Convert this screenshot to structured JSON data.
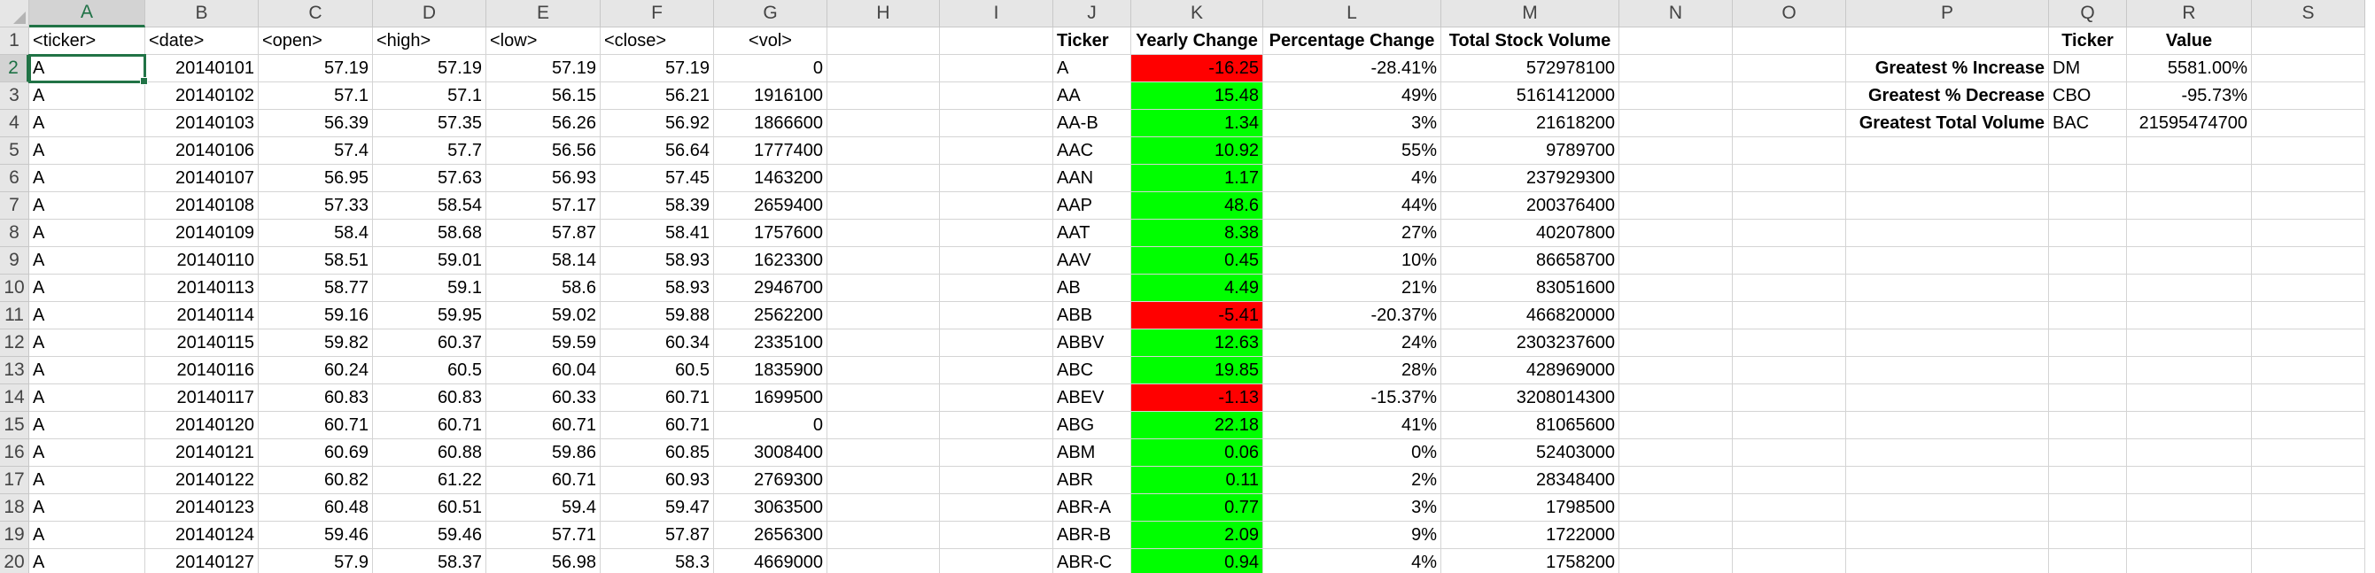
{
  "sheet": {
    "columns": [
      "A",
      "B",
      "C",
      "D",
      "E",
      "F",
      "G",
      "H",
      "I",
      "J",
      "K",
      "L",
      "M",
      "N",
      "O",
      "P",
      "Q",
      "R",
      "S"
    ],
    "selected_column": "A",
    "selected_row": "2",
    "rows": [
      "1",
      "2",
      "3",
      "4",
      "5",
      "6",
      "7",
      "8",
      "9",
      "10",
      "11",
      "12",
      "13",
      "14",
      "15",
      "16",
      "17",
      "18",
      "19",
      "20"
    ],
    "raw_headers": [
      "<ticker>",
      "<date>",
      "<open>",
      "<high>",
      "<low>",
      "<close>",
      "<vol>"
    ],
    "raw_data": [
      [
        "A",
        "20140101",
        "57.19",
        "57.19",
        "57.19",
        "57.19",
        "0"
      ],
      [
        "A",
        "20140102",
        "57.1",
        "57.1",
        "56.15",
        "56.21",
        "1916100"
      ],
      [
        "A",
        "20140103",
        "56.39",
        "57.35",
        "56.26",
        "56.92",
        "1866600"
      ],
      [
        "A",
        "20140106",
        "57.4",
        "57.7",
        "56.56",
        "56.64",
        "1777400"
      ],
      [
        "A",
        "20140107",
        "56.95",
        "57.63",
        "56.93",
        "57.45",
        "1463200"
      ],
      [
        "A",
        "20140108",
        "57.33",
        "58.54",
        "57.17",
        "58.39",
        "2659400"
      ],
      [
        "A",
        "20140109",
        "58.4",
        "58.68",
        "57.87",
        "58.41",
        "1757600"
      ],
      [
        "A",
        "20140110",
        "58.51",
        "59.01",
        "58.14",
        "58.93",
        "1623300"
      ],
      [
        "A",
        "20140113",
        "58.77",
        "59.1",
        "58.6",
        "58.93",
        "2946700"
      ],
      [
        "A",
        "20140114",
        "59.16",
        "59.95",
        "59.02",
        "59.88",
        "2562200"
      ],
      [
        "A",
        "20140115",
        "59.82",
        "60.37",
        "59.59",
        "60.34",
        "2335100"
      ],
      [
        "A",
        "20140116",
        "60.24",
        "60.5",
        "60.04",
        "60.5",
        "1835900"
      ],
      [
        "A",
        "20140117",
        "60.83",
        "60.83",
        "60.33",
        "60.71",
        "1699500"
      ],
      [
        "A",
        "20140120",
        "60.71",
        "60.71",
        "60.71",
        "60.71",
        "0"
      ],
      [
        "A",
        "20140121",
        "60.69",
        "60.88",
        "59.86",
        "60.85",
        "3008400"
      ],
      [
        "A",
        "20140122",
        "60.82",
        "61.22",
        "60.71",
        "60.93",
        "2769300"
      ],
      [
        "A",
        "20140123",
        "60.48",
        "60.51",
        "59.4",
        "59.47",
        "3063500"
      ],
      [
        "A",
        "20140124",
        "59.46",
        "59.46",
        "57.71",
        "57.87",
        "2656300"
      ],
      [
        "A",
        "20140127",
        "57.9",
        "58.37",
        "56.98",
        "58.3",
        "4669000"
      ]
    ],
    "summary_headers": [
      "Ticker",
      "Yearly Change",
      "Percentage Change",
      "Total Stock Volume"
    ],
    "summary": [
      {
        "ticker": "A",
        "change": "-16.25",
        "pct": "-28.41%",
        "volume": "572978100",
        "color": "red"
      },
      {
        "ticker": "AA",
        "change": "15.48",
        "pct": "49%",
        "volume": "5161412000",
        "color": "green"
      },
      {
        "ticker": "AA-B",
        "change": "1.34",
        "pct": "3%",
        "volume": "21618200",
        "color": "green"
      },
      {
        "ticker": "AAC",
        "change": "10.92",
        "pct": "55%",
        "volume": "9789700",
        "color": "green"
      },
      {
        "ticker": "AAN",
        "change": "1.17",
        "pct": "4%",
        "volume": "237929300",
        "color": "green"
      },
      {
        "ticker": "AAP",
        "change": "48.6",
        "pct": "44%",
        "volume": "200376400",
        "color": "green"
      },
      {
        "ticker": "AAT",
        "change": "8.38",
        "pct": "27%",
        "volume": "40207800",
        "color": "green"
      },
      {
        "ticker": "AAV",
        "change": "0.45",
        "pct": "10%",
        "volume": "86658700",
        "color": "green"
      },
      {
        "ticker": "AB",
        "change": "4.49",
        "pct": "21%",
        "volume": "83051600",
        "color": "green"
      },
      {
        "ticker": "ABB",
        "change": "-5.41",
        "pct": "-20.37%",
        "volume": "466820000",
        "color": "red"
      },
      {
        "ticker": "ABBV",
        "change": "12.63",
        "pct": "24%",
        "volume": "2303237600",
        "color": "green"
      },
      {
        "ticker": "ABC",
        "change": "19.85",
        "pct": "28%",
        "volume": "428969000",
        "color": "green"
      },
      {
        "ticker": "ABEV",
        "change": "-1.13",
        "pct": "-15.37%",
        "volume": "3208014300",
        "color": "red"
      },
      {
        "ticker": "ABG",
        "change": "22.18",
        "pct": "41%",
        "volume": "81065600",
        "color": "green"
      },
      {
        "ticker": "ABM",
        "change": "0.06",
        "pct": "0%",
        "volume": "52403000",
        "color": "green"
      },
      {
        "ticker": "ABR",
        "change": "0.11",
        "pct": "2%",
        "volume": "28348400",
        "color": "green"
      },
      {
        "ticker": "ABR-A",
        "change": "0.77",
        "pct": "3%",
        "volume": "1798500",
        "color": "green"
      },
      {
        "ticker": "ABR-B",
        "change": "2.09",
        "pct": "9%",
        "volume": "1722000",
        "color": "green"
      },
      {
        "ticker": "ABR-C",
        "change": "0.94",
        "pct": "4%",
        "volume": "1758200",
        "color": "green"
      }
    ],
    "greatest_headers": [
      "Ticker",
      "Value"
    ],
    "greatest": [
      {
        "label": "Greatest % Increase",
        "ticker": "DM",
        "value": "5581.00%"
      },
      {
        "label": "Greatest % Decrease",
        "ticker": "CBO",
        "value": "-95.73%"
      },
      {
        "label": "Greatest Total Volume",
        "ticker": "BAC",
        "value": "21595474700"
      }
    ]
  },
  "colors": {
    "positive_fill": "#00ff00",
    "negative_fill": "#ff0000",
    "selection_accent": "#217346"
  }
}
